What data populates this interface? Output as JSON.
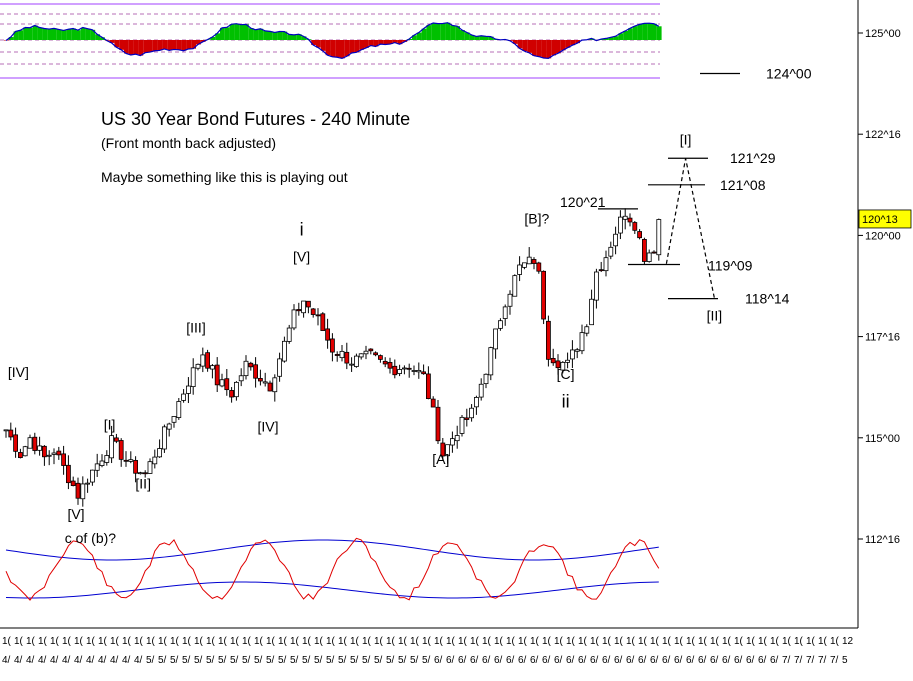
{
  "chart_data": {
    "type": "candlestick",
    "title": "US 30 Year Bond Futures - 240 Minute",
    "subtitle": "(Front month back adjusted)",
    "note": "Maybe something like this is playing out",
    "price_axis": {
      "ticks": [
        "125^00",
        "122^16",
        "120^00",
        "117^16",
        "115^00",
        "112^16"
      ],
      "tick_values": [
        125.0,
        122.5,
        120.0,
        117.5,
        115.0,
        112.5
      ],
      "current_price_label": "120^13",
      "current_price": 120.406,
      "current_price_color": "#ffff00"
    },
    "date_axis": {
      "row1": [
        "1(",
        "1(",
        "1(",
        "1(",
        "1(",
        "1(",
        "1(",
        "1(",
        "1(",
        "1(",
        "1(",
        "1(",
        "1(",
        "1(",
        "1(",
        "1(",
        "1(",
        "1(",
        "1(",
        "1(",
        "1(",
        "1(",
        "1(",
        "1(",
        "1(",
        "1(",
        "1(",
        "1(",
        "1(",
        "1(",
        "1(",
        "1(",
        "1(",
        "1(",
        "1(",
        "1(",
        "1(",
        "1(",
        "1(",
        "1(",
        "1(",
        "1(",
        "1(",
        "1(",
        "1(",
        "1(",
        "1(",
        "1(",
        "1(",
        "1(",
        "1(",
        "1(",
        "1(",
        "1(",
        "1(",
        "1(",
        "1(",
        "1(",
        "1(",
        "1(",
        "1(",
        "1(",
        "1(",
        "1(",
        "1(",
        "1(",
        "1(",
        "1(",
        "1(",
        "1(",
        "12"
      ],
      "row2": [
        "4/",
        "4/",
        "4/",
        "4/",
        "4/",
        "4/",
        "4/",
        "4/",
        "4/",
        "4/",
        "4/",
        "4/",
        "5/",
        "5/",
        "5/",
        "5/",
        "5/",
        "5/",
        "5/",
        "5/",
        "5/",
        "5/",
        "5/",
        "5/",
        "5/",
        "5/",
        "5/",
        "5/",
        "5/",
        "5/",
        "5/",
        "5/",
        "5/",
        "5/",
        "5/",
        "5/",
        "6/",
        "6/",
        "6/",
        "6/",
        "6/",
        "6/",
        "6/",
        "6/",
        "6/",
        "6/",
        "6/",
        "6/",
        "6/",
        "6/",
        "6/",
        "6/",
        "6/",
        "6/",
        "6/",
        "6/",
        "6/",
        "6/",
        "6/",
        "6/",
        "6/",
        "6/",
        "6/",
        "6/",
        "6/",
        "7/",
        "7/",
        "7/",
        "7/",
        "7/",
        "5"
      ]
    },
    "wave_labels": [
      {
        "text": "[IV]",
        "x": 3,
        "y": 116.5
      },
      {
        "text": "[I]",
        "x": 22,
        "y": 115.2
      },
      {
        "text": "[II]",
        "x": 29,
        "y": 113.75
      },
      {
        "text": "[V]",
        "x": 15,
        "y": 113.0
      },
      {
        "text": "c of (b)?",
        "x": 18,
        "y": 112.4
      },
      {
        "text": "[III]",
        "x": 40,
        "y": 117.6
      },
      {
        "text": "[IV]",
        "x": 55,
        "y": 115.15
      },
      {
        "text": "i",
        "x": 62,
        "y": 120.0
      },
      {
        "text": "[V]",
        "x": 62,
        "y": 119.35
      },
      {
        "text": "[A]",
        "x": 91,
        "y": 114.35
      },
      {
        "text": "[B]?",
        "x": 111,
        "y": 120.3
      },
      {
        "text": "[C]",
        "x": 117,
        "y": 116.45
      },
      {
        "text": "ii",
        "x": 117,
        "y": 115.75
      },
      {
        "text": "[I]",
        "x": 142,
        "y": 122.25
      },
      {
        "text": "[II]",
        "x": 148,
        "y": 117.9
      }
    ],
    "price_levels": [
      {
        "label": "124^00",
        "value": 124.0
      },
      {
        "label": "121^29",
        "value": 121.906
      },
      {
        "label": "121^08",
        "value": 121.25
      },
      {
        "label": "120^21",
        "value": 120.656
      },
      {
        "label": "119^09",
        "value": 119.281
      },
      {
        "label": "118^14",
        "value": 118.438
      }
    ],
    "projection": [
      {
        "x": 138,
        "y": 119.3
      },
      {
        "x": 142,
        "y": 121.9
      },
      {
        "x": 148,
        "y": 118.45
      }
    ],
    "candles": {
      "count": 137,
      "start_price": 115.2,
      "waypoints": [
        [
          0,
          115.2
        ],
        [
          3,
          114.6
        ],
        [
          5,
          115.0
        ],
        [
          8,
          114.5
        ],
        [
          10,
          114.7
        ],
        [
          15,
          113.6
        ],
        [
          17,
          114.0
        ],
        [
          22,
          114.9
        ],
        [
          26,
          114.3
        ],
        [
          29,
          114.1
        ],
        [
          33,
          115.1
        ],
        [
          38,
          116.4
        ],
        [
          41,
          117.1
        ],
        [
          44,
          116.4
        ],
        [
          47,
          116.1
        ],
        [
          50,
          116.8
        ],
        [
          55,
          116.3
        ],
        [
          60,
          118.0
        ],
        [
          62,
          118.4
        ],
        [
          65,
          117.9
        ],
        [
          68,
          117.2
        ],
        [
          72,
          116.9
        ],
        [
          76,
          117.0
        ],
        [
          80,
          116.7
        ],
        [
          84,
          116.8
        ],
        [
          87,
          116.5
        ],
        [
          89,
          115.6
        ],
        [
          91,
          114.6
        ],
        [
          94,
          115.2
        ],
        [
          97,
          115.6
        ],
        [
          100,
          116.7
        ],
        [
          104,
          118.4
        ],
        [
          107,
          119.2
        ],
        [
          110,
          119.4
        ],
        [
          111,
          119.0
        ],
        [
          113,
          117.1
        ],
        [
          115,
          116.9
        ],
        [
          117,
          116.8
        ],
        [
          119,
          117.3
        ],
        [
          121,
          117.9
        ],
        [
          123,
          119.1
        ],
        [
          125,
          119.5
        ],
        [
          127,
          120.1
        ],
        [
          129,
          120.6
        ],
        [
          131,
          120.3
        ],
        [
          133,
          119.5
        ],
        [
          135,
          119.7
        ],
        [
          136,
          120.4
        ]
      ]
    }
  }
}
